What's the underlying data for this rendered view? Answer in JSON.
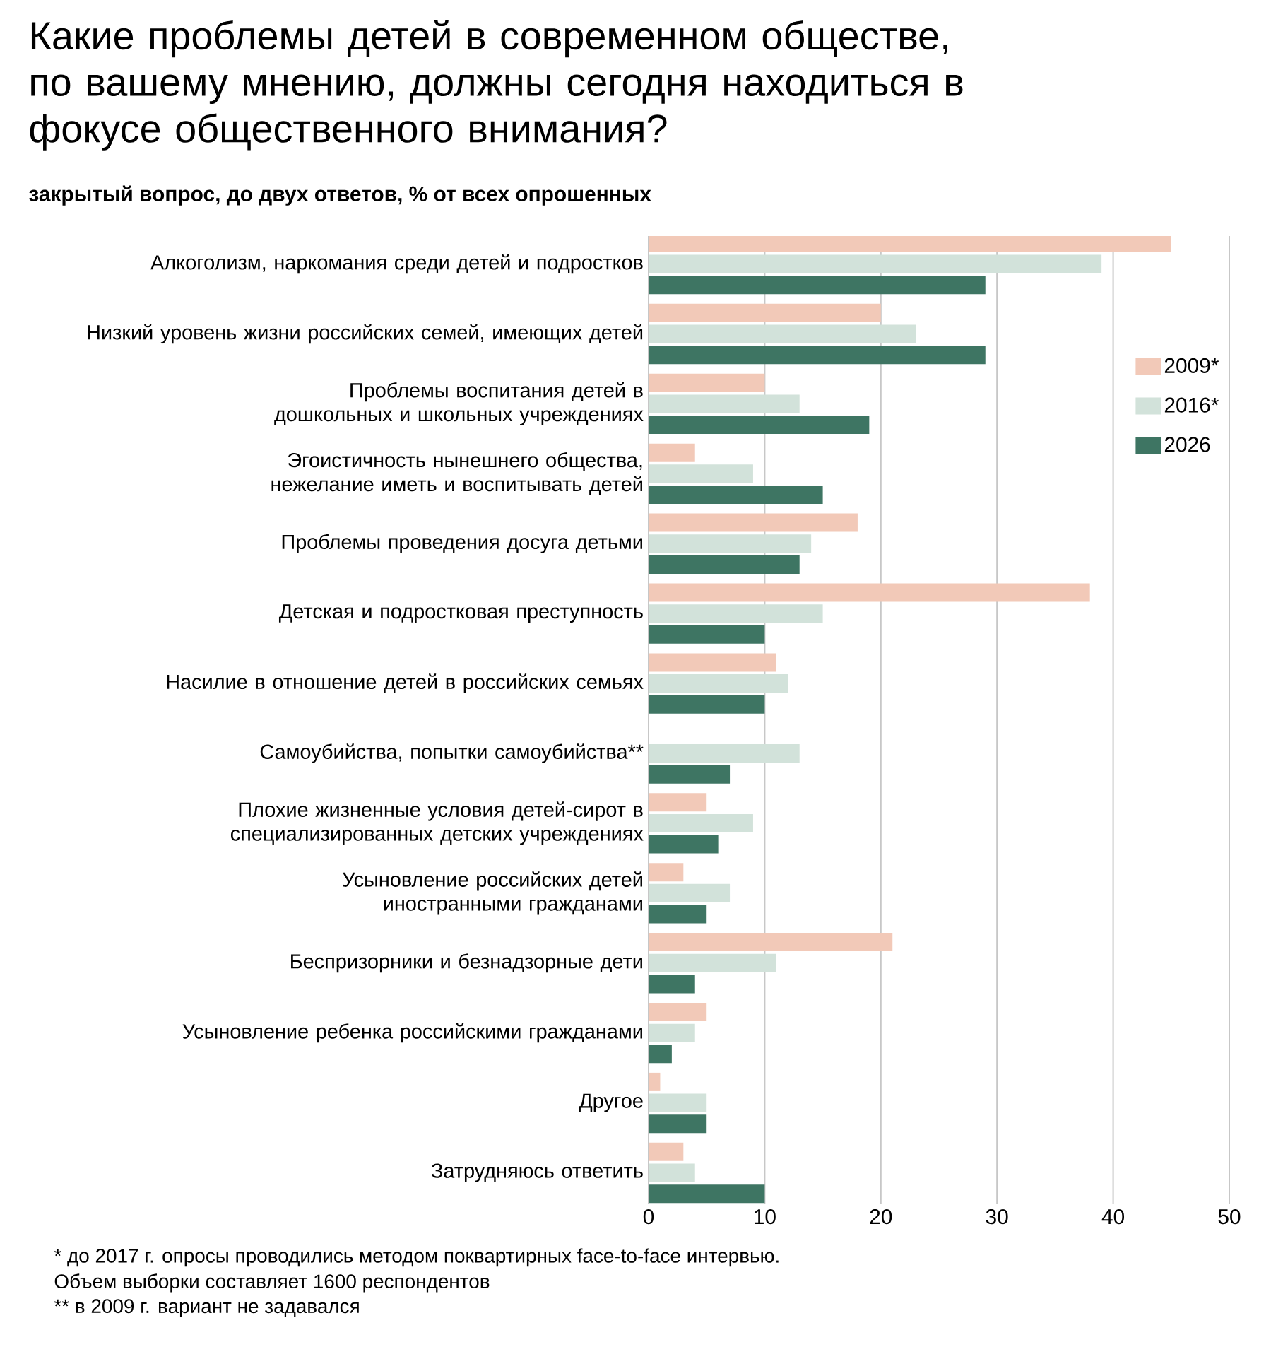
{
  "chart_data": {
    "type": "bar",
    "orientation": "horizontal",
    "title": "Какие проблемы детей в современном обществе, по вашему мнению, должны сегодня находиться в фокусе общественного внимания?",
    "subtitle": "закрытый вопрос, до двух ответов, % от всех опрошенных",
    "categories": [
      "Алкоголизм, наркомания среди детей и подростков",
      "Низкий уровень жизни российских семей, имеющих детей",
      "Проблемы воспитания детей в дошкольных и школьных учреждениях",
      "Эгоистичность нынешнего общества, нежелание иметь и воспитывать детей",
      "Проблемы проведения досуга детьми",
      "Детская и подростковая преступность",
      "Насилие в отношение детей в российских семьях",
      "Самоубийства, попытки самоубийства**",
      "Плохие жизненные условия детей-сирот в специализированных детских учреждениях",
      "Усыновление российских детей иностранными гражданами",
      "Беспризорники и безнадзорные дети",
      "Усыновление ребенка российскими гражданами",
      "Другое",
      "Затрудняюсь ответить"
    ],
    "series": [
      {
        "name": "2009*",
        "color": "#f2c9b8",
        "values": [
          45,
          20,
          10,
          4,
          18,
          38,
          11,
          null,
          5,
          3,
          21,
          5,
          1,
          3
        ]
      },
      {
        "name": "2016*",
        "color": "#d2e2da",
        "values": [
          39,
          23,
          13,
          9,
          14,
          15,
          12,
          13,
          9,
          7,
          11,
          4,
          5,
          4
        ]
      },
      {
        "name": "2026",
        "color": "#3e7563",
        "values": [
          29,
          29,
          19,
          15,
          13,
          10,
          10,
          7,
          6,
          5,
          4,
          2,
          5,
          10
        ]
      }
    ],
    "xlim": [
      0,
      50
    ],
    "xticks": [
      0,
      10,
      20,
      30,
      40,
      50
    ],
    "grid": "x",
    "legend": "right",
    "annotations": [
      "* до 2017 г. опросы проводились методом поквартирных face-to-face интервью.",
      "Объем выборки составляет 1600 респондентов",
      "** в 2009 г. вариант не задавался"
    ]
  }
}
